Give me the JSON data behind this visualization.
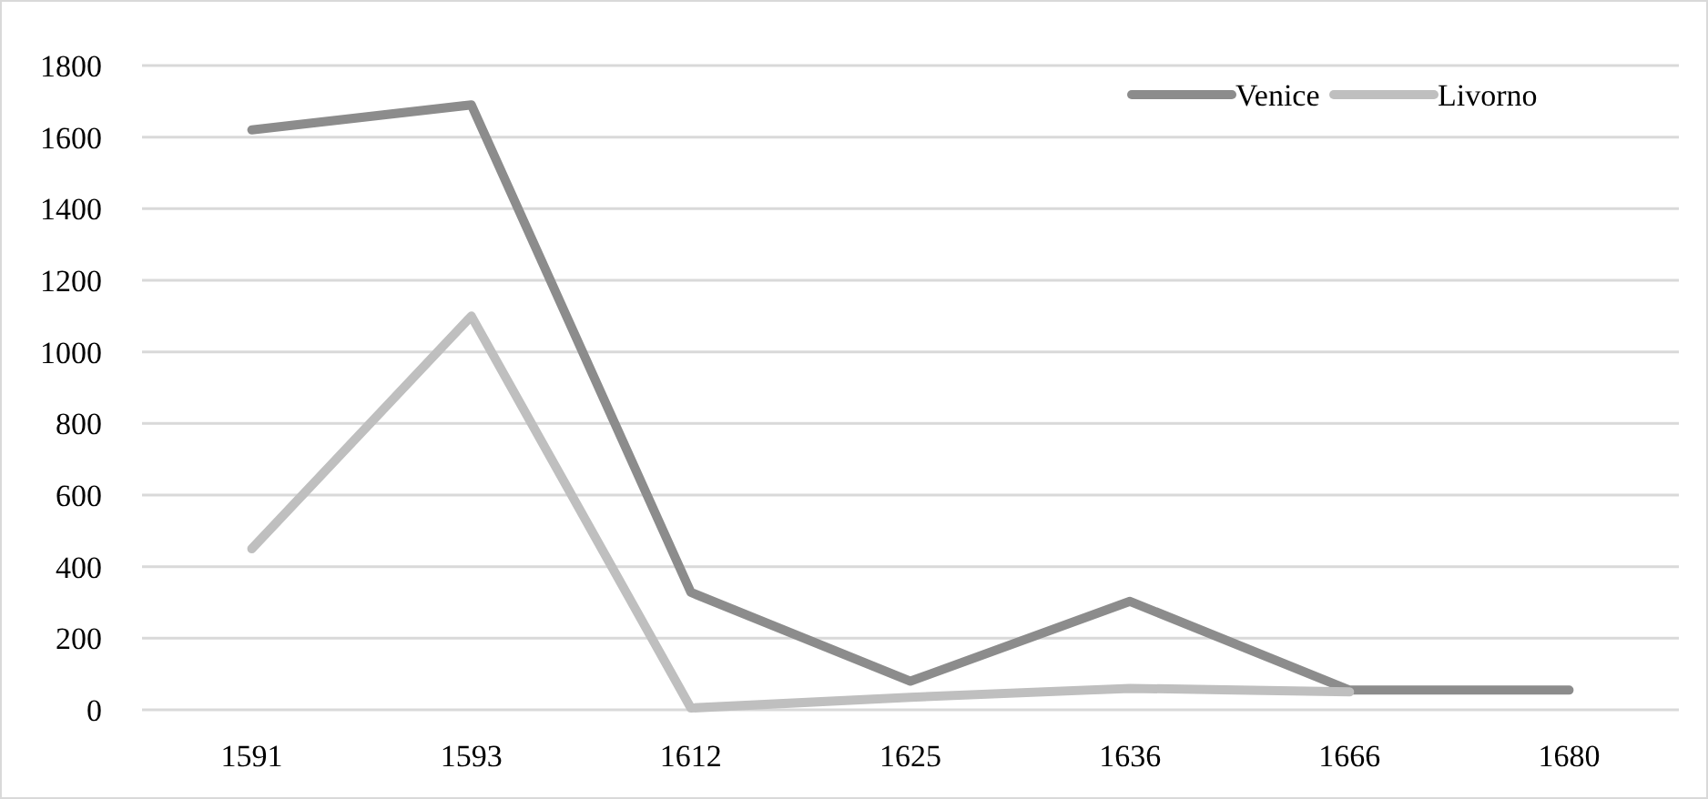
{
  "chart_data": {
    "type": "line",
    "categories": [
      "1591",
      "1593",
      "1612",
      "1625",
      "1636",
      "1666",
      "1680"
    ],
    "series": [
      {
        "name": "Venice",
        "color": "#8c8c8c",
        "values": [
          1620,
          1690,
          328,
          80,
          303,
          55,
          55
        ]
      },
      {
        "name": "Livorno",
        "color": "#bfbfbf",
        "values": [
          450,
          1100,
          5,
          35,
          60,
          50,
          null
        ]
      }
    ],
    "ylim": [
      0,
      1800
    ],
    "yticks": [
      0,
      200,
      400,
      600,
      800,
      1000,
      1200,
      1400,
      1600,
      1800
    ],
    "grid": "y",
    "legend": "top right",
    "marker": "none",
    "line_style": "solid"
  }
}
